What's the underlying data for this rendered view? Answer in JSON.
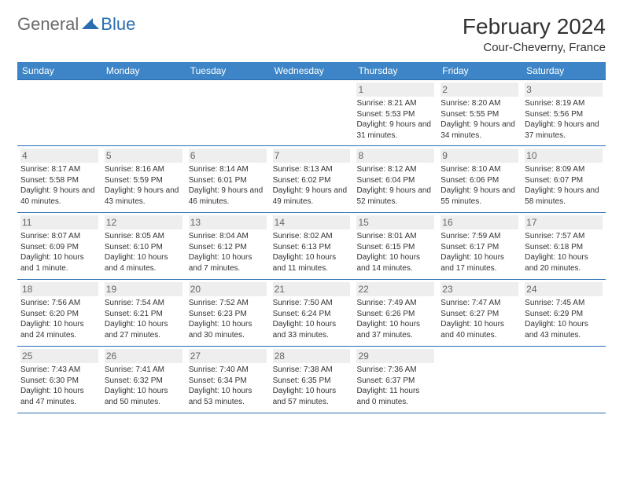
{
  "logo": {
    "part1": "General",
    "part2": "Blue"
  },
  "title": "February 2024",
  "location": "Cour-Cheverny, France",
  "colors": {
    "header_bg": "#3d85c6",
    "border": "#2a6db0",
    "daynum_bg": "#eeeeee",
    "logo_gray": "#6a6a6a",
    "logo_blue": "#2a6db0"
  },
  "daysOfWeek": [
    "Sunday",
    "Monday",
    "Tuesday",
    "Wednesday",
    "Thursday",
    "Friday",
    "Saturday"
  ],
  "weeks": [
    [
      null,
      null,
      null,
      null,
      {
        "n": "1",
        "sunrise": "8:21 AM",
        "sunset": "5:53 PM",
        "daylight": "9 hours and 31 minutes."
      },
      {
        "n": "2",
        "sunrise": "8:20 AM",
        "sunset": "5:55 PM",
        "daylight": "9 hours and 34 minutes."
      },
      {
        "n": "3",
        "sunrise": "8:19 AM",
        "sunset": "5:56 PM",
        "daylight": "9 hours and 37 minutes."
      }
    ],
    [
      {
        "n": "4",
        "sunrise": "8:17 AM",
        "sunset": "5:58 PM",
        "daylight": "9 hours and 40 minutes."
      },
      {
        "n": "5",
        "sunrise": "8:16 AM",
        "sunset": "5:59 PM",
        "daylight": "9 hours and 43 minutes."
      },
      {
        "n": "6",
        "sunrise": "8:14 AM",
        "sunset": "6:01 PM",
        "daylight": "9 hours and 46 minutes."
      },
      {
        "n": "7",
        "sunrise": "8:13 AM",
        "sunset": "6:02 PM",
        "daylight": "9 hours and 49 minutes."
      },
      {
        "n": "8",
        "sunrise": "8:12 AM",
        "sunset": "6:04 PM",
        "daylight": "9 hours and 52 minutes."
      },
      {
        "n": "9",
        "sunrise": "8:10 AM",
        "sunset": "6:06 PM",
        "daylight": "9 hours and 55 minutes."
      },
      {
        "n": "10",
        "sunrise": "8:09 AM",
        "sunset": "6:07 PM",
        "daylight": "9 hours and 58 minutes."
      }
    ],
    [
      {
        "n": "11",
        "sunrise": "8:07 AM",
        "sunset": "6:09 PM",
        "daylight": "10 hours and 1 minute."
      },
      {
        "n": "12",
        "sunrise": "8:05 AM",
        "sunset": "6:10 PM",
        "daylight": "10 hours and 4 minutes."
      },
      {
        "n": "13",
        "sunrise": "8:04 AM",
        "sunset": "6:12 PM",
        "daylight": "10 hours and 7 minutes."
      },
      {
        "n": "14",
        "sunrise": "8:02 AM",
        "sunset": "6:13 PM",
        "daylight": "10 hours and 11 minutes."
      },
      {
        "n": "15",
        "sunrise": "8:01 AM",
        "sunset": "6:15 PM",
        "daylight": "10 hours and 14 minutes."
      },
      {
        "n": "16",
        "sunrise": "7:59 AM",
        "sunset": "6:17 PM",
        "daylight": "10 hours and 17 minutes."
      },
      {
        "n": "17",
        "sunrise": "7:57 AM",
        "sunset": "6:18 PM",
        "daylight": "10 hours and 20 minutes."
      }
    ],
    [
      {
        "n": "18",
        "sunrise": "7:56 AM",
        "sunset": "6:20 PM",
        "daylight": "10 hours and 24 minutes."
      },
      {
        "n": "19",
        "sunrise": "7:54 AM",
        "sunset": "6:21 PM",
        "daylight": "10 hours and 27 minutes."
      },
      {
        "n": "20",
        "sunrise": "7:52 AM",
        "sunset": "6:23 PM",
        "daylight": "10 hours and 30 minutes."
      },
      {
        "n": "21",
        "sunrise": "7:50 AM",
        "sunset": "6:24 PM",
        "daylight": "10 hours and 33 minutes."
      },
      {
        "n": "22",
        "sunrise": "7:49 AM",
        "sunset": "6:26 PM",
        "daylight": "10 hours and 37 minutes."
      },
      {
        "n": "23",
        "sunrise": "7:47 AM",
        "sunset": "6:27 PM",
        "daylight": "10 hours and 40 minutes."
      },
      {
        "n": "24",
        "sunrise": "7:45 AM",
        "sunset": "6:29 PM",
        "daylight": "10 hours and 43 minutes."
      }
    ],
    [
      {
        "n": "25",
        "sunrise": "7:43 AM",
        "sunset": "6:30 PM",
        "daylight": "10 hours and 47 minutes."
      },
      {
        "n": "26",
        "sunrise": "7:41 AM",
        "sunset": "6:32 PM",
        "daylight": "10 hours and 50 minutes."
      },
      {
        "n": "27",
        "sunrise": "7:40 AM",
        "sunset": "6:34 PM",
        "daylight": "10 hours and 53 minutes."
      },
      {
        "n": "28",
        "sunrise": "7:38 AM",
        "sunset": "6:35 PM",
        "daylight": "10 hours and 57 minutes."
      },
      {
        "n": "29",
        "sunrise": "7:36 AM",
        "sunset": "6:37 PM",
        "daylight": "11 hours and 0 minutes."
      },
      null,
      null
    ]
  ]
}
